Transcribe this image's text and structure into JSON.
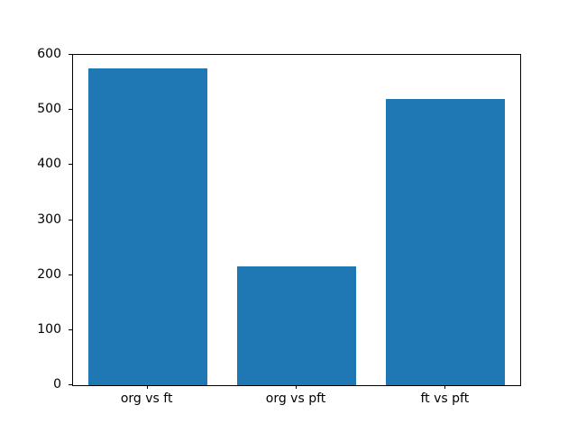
{
  "chart_data": {
    "type": "bar",
    "title": "",
    "categories": [
      "org vs ft",
      "org vs pft",
      "ft vs pft"
    ],
    "values": [
      575,
      216,
      520
    ],
    "xlabel": "",
    "ylabel": "",
    "ylim": [
      0,
      600
    ],
    "yticks": [
      0,
      100,
      200,
      300,
      400,
      500,
      600
    ],
    "bar_color": "#1f77b4",
    "bar_width_fraction": 0.8,
    "grid": false,
    "legend_position": "none"
  },
  "figure": {
    "background_color": "#ffffff",
    "spine_color": "#000000",
    "tick_label_color": "#000000"
  }
}
